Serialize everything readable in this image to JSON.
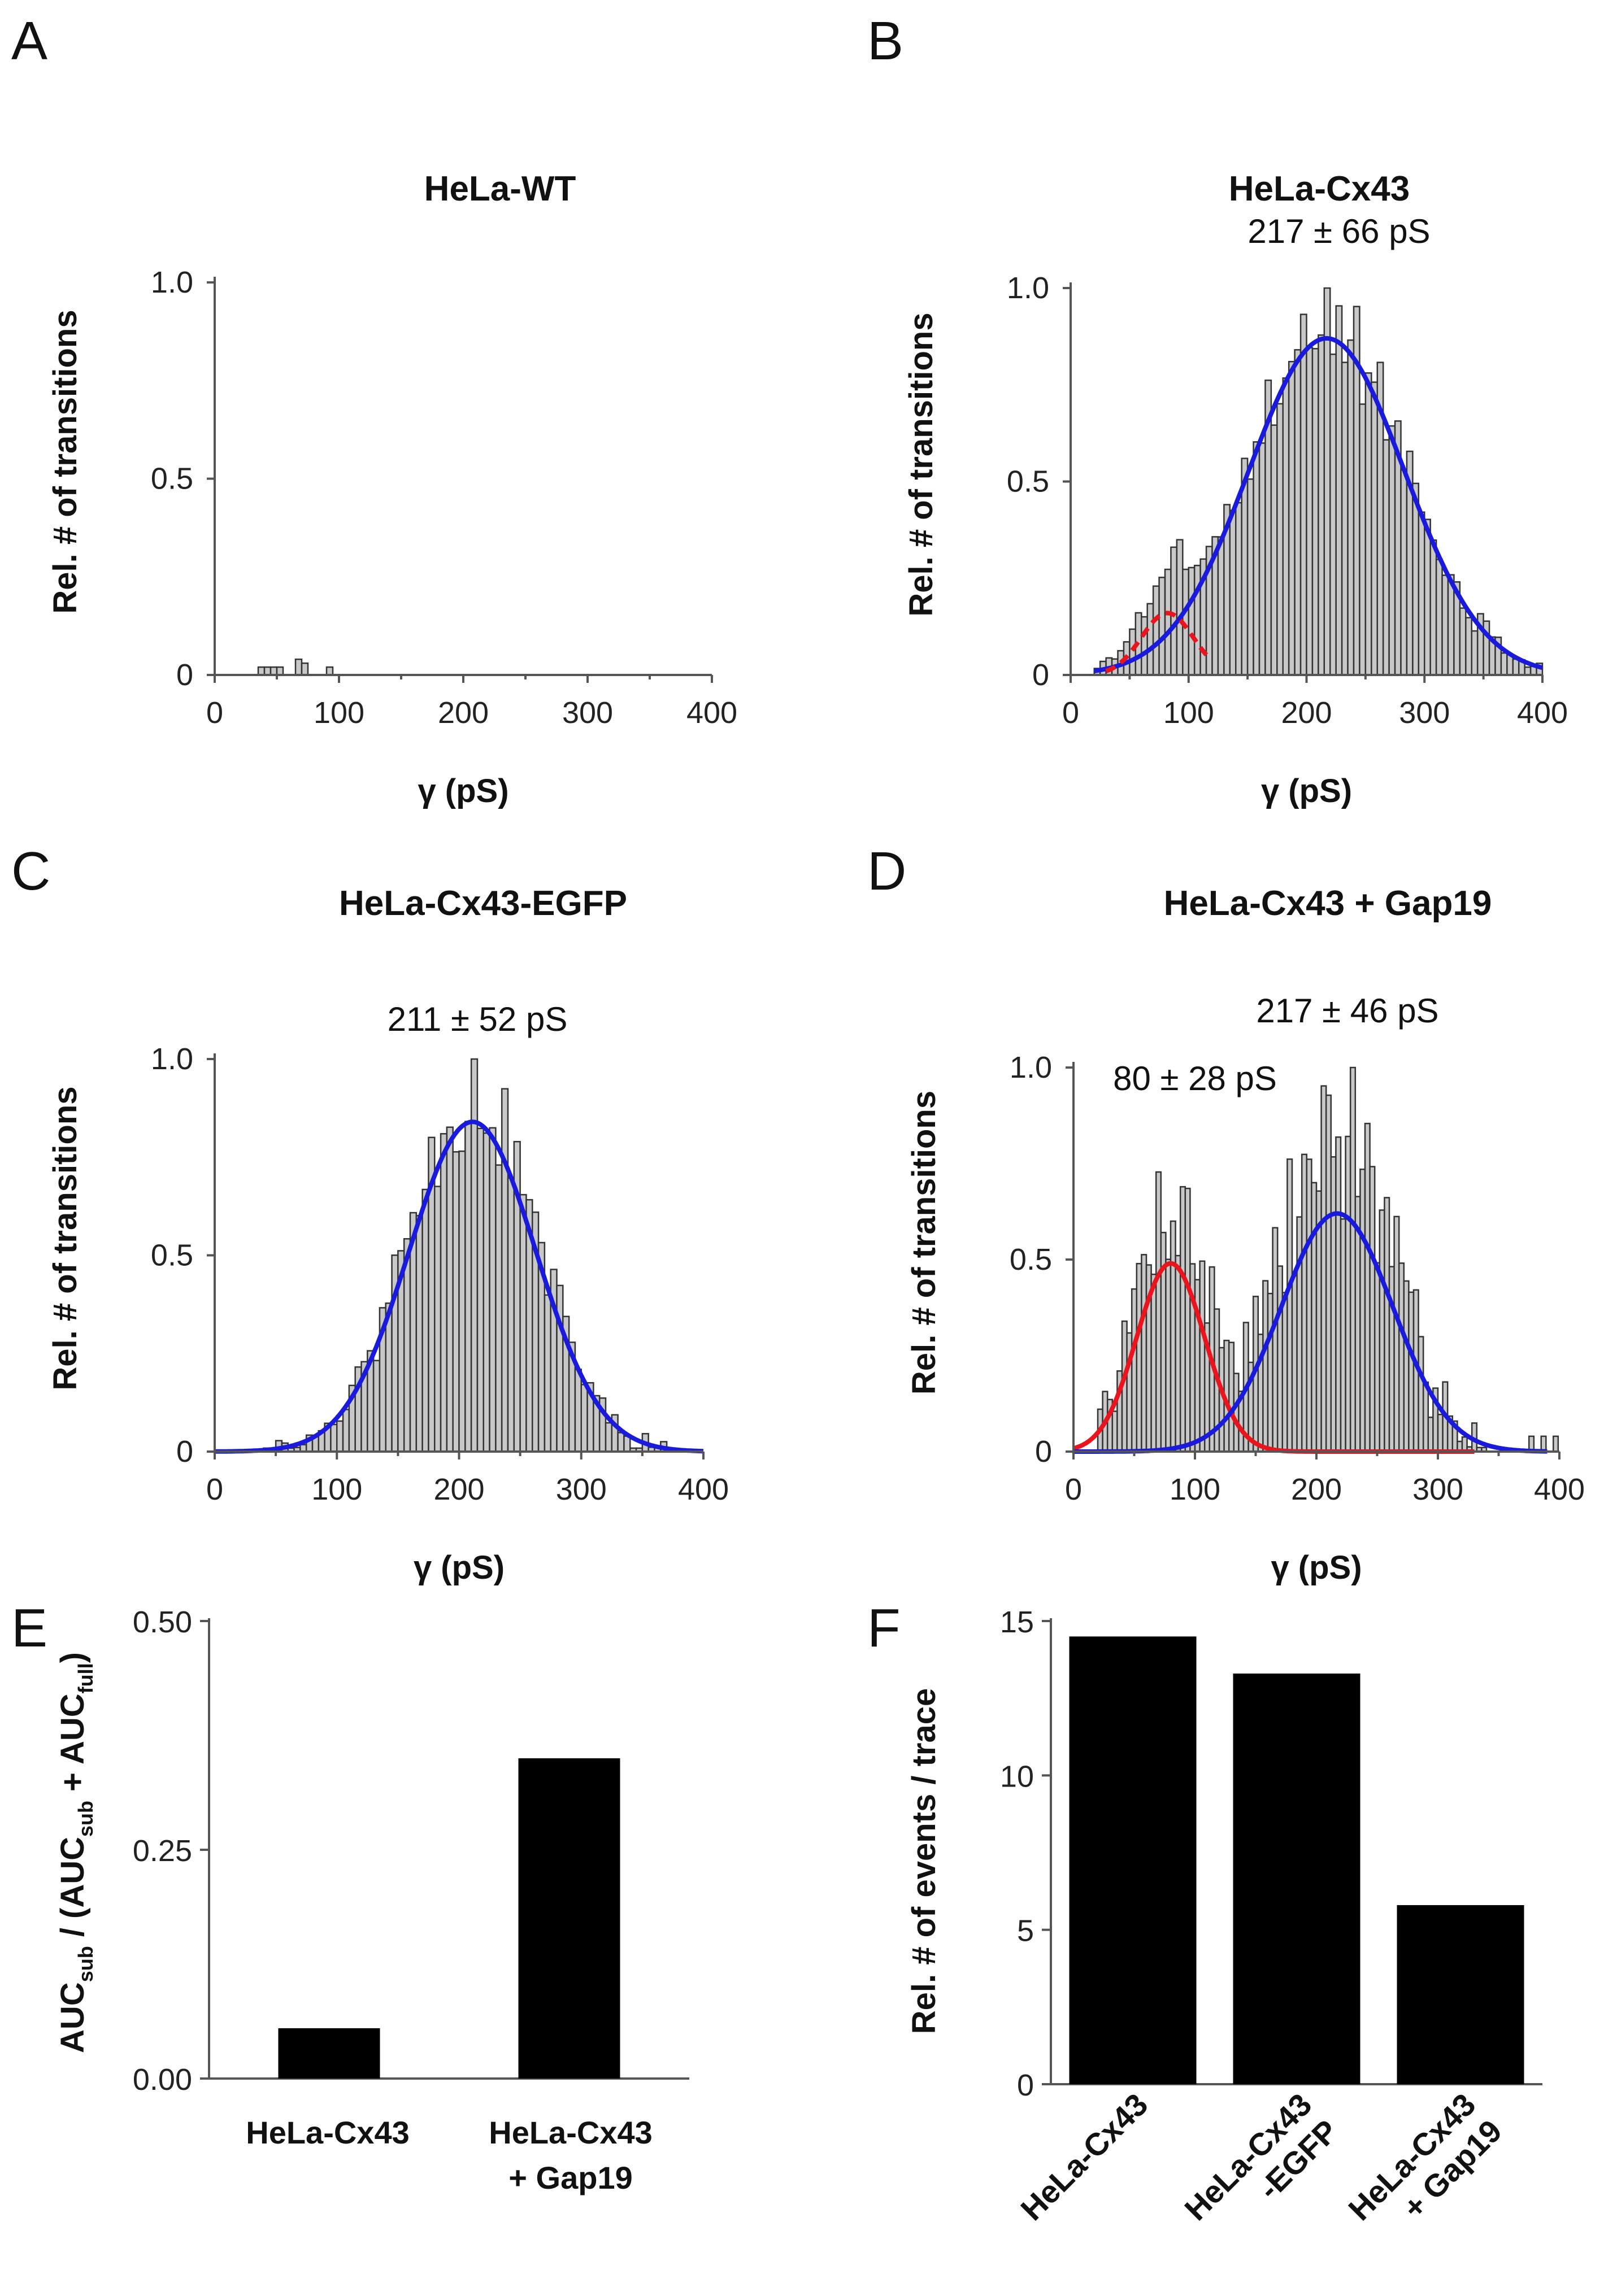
{
  "panels": {
    "A": {
      "letter": "A",
      "title": "HeLa-WT"
    },
    "B": {
      "letter": "B",
      "title": "HeLa-Cx43",
      "fit_label": "217 ± 66 pS"
    },
    "C": {
      "letter": "C",
      "title": "HeLa-Cx43-EGFP",
      "fit_label": "211 ± 52 pS"
    },
    "D": {
      "letter": "D",
      "title": "HeLa-Cx43 + Gap19",
      "fit_label_full": "217 ± 46 pS",
      "fit_label_sub": "80 ± 28 pS"
    },
    "E": {
      "letter": "E"
    },
    "F": {
      "letter": "F"
    }
  },
  "hist_axes": {
    "xlabel": "γ (pS)",
    "ylabel": "Rel. # of transitions",
    "xticks": [
      "0",
      "100",
      "200",
      "300",
      "400"
    ],
    "yticks": [
      "0",
      "0.5",
      "1.0"
    ]
  },
  "colors": {
    "full_fit": "#1a1adc",
    "sub_fit": "#e8141e",
    "hist_fill": "#c8c8c8",
    "bar": "#000000"
  },
  "chart_data": [
    {
      "id": "A",
      "type": "bar",
      "title": "HeLa-WT",
      "xlabel": "γ (pS)",
      "ylabel": "Rel. # of transitions",
      "xlim": [
        0,
        400
      ],
      "ylim": [
        0,
        1.0
      ],
      "bin_width": 5,
      "bins": [
        [
          35,
          0.02
        ],
        [
          40,
          0.02
        ],
        [
          45,
          0.02
        ],
        [
          50,
          0.02
        ],
        [
          65,
          0.04
        ],
        [
          70,
          0.03
        ],
        [
          90,
          0.02
        ]
      ]
    },
    {
      "id": "B",
      "type": "bar",
      "title": "HeLa-Cx43",
      "xlabel": "γ (pS)",
      "ylabel": "Rel. # of transitions",
      "xlim": [
        0,
        400
      ],
      "ylim": [
        0,
        1.0
      ],
      "bin_width": 5,
      "generator": {
        "x_start": 20,
        "x_end": 400,
        "noise_amp": 0.06,
        "seed": 3
      },
      "fits": [
        {
          "name": "full",
          "mean": 217,
          "sd": 66,
          "amp": 0.87,
          "style": "solid",
          "color": "#1a1adc",
          "range": [
            20,
            400
          ]
        },
        {
          "name": "sub",
          "mean": 82,
          "sd": 22,
          "amp": 0.16,
          "style": "dashed",
          "color": "#e8141e",
          "range": [
            30,
            115
          ]
        }
      ],
      "annotation": "217 ± 66 pS"
    },
    {
      "id": "C",
      "type": "bar",
      "title": "HeLa-Cx43-EGFP",
      "xlabel": "γ (pS)",
      "ylabel": "Rel. # of transitions",
      "xlim": [
        0,
        400
      ],
      "ylim": [
        0,
        1.0
      ],
      "bin_width": 5,
      "generator": {
        "x_start": 40,
        "x_end": 375,
        "noise_amp": 0.08,
        "seed": 11
      },
      "fits": [
        {
          "name": "full",
          "mean": 211,
          "sd": 52,
          "amp": 0.84,
          "style": "solid",
          "color": "#1a1adc",
          "range": [
            0,
            400
          ]
        }
      ],
      "annotation": "211 ± 52 pS"
    },
    {
      "id": "D",
      "type": "bar",
      "title": "HeLa-Cx43 + Gap19",
      "xlabel": "γ (pS)",
      "ylabel": "Rel. # of transitions",
      "xlim": [
        0,
        400
      ],
      "ylim": [
        0,
        1.0
      ],
      "bin_width": 4,
      "generator": {
        "x_start": 20,
        "x_end": 340,
        "noise_amp": 0.14,
        "seed": 7,
        "tail": [
          [
            375,
            0.03
          ],
          [
            385,
            0.03
          ],
          [
            395,
            0.03
          ]
        ]
      },
      "fits": [
        {
          "name": "sub",
          "mean": 80,
          "sd": 28,
          "amp": 0.49,
          "style": "solid",
          "color": "#e8141e",
          "range": [
            0,
            330
          ]
        },
        {
          "name": "full",
          "mean": 217,
          "sd": 46,
          "amp": 0.62,
          "style": "solid",
          "color": "#1a1adc",
          "range": [
            0,
            390
          ]
        }
      ],
      "annotations": [
        "217 ± 46 pS",
        "80 ± 28 pS"
      ]
    },
    {
      "id": "E",
      "type": "bar",
      "categories": [
        "HeLa-Cx43",
        "HeLa-Cx43\n+ Gap19"
      ],
      "values": [
        0.055,
        0.35
      ],
      "ylabel": "AUCsub / (AUCsub + AUCfull)",
      "ylim": [
        0,
        0.5
      ],
      "yticks": [
        "0.00",
        "0.25",
        "0.50"
      ]
    },
    {
      "id": "F",
      "type": "bar",
      "categories": [
        "HeLa-Cx43",
        "HeLa-Cx43\n-EGFP",
        "HeLa-Cx43\n+ Gap19"
      ],
      "values": [
        14.5,
        13.3,
        5.8
      ],
      "ylabel": "Rel. # of events / trace",
      "ylim": [
        0,
        15
      ],
      "yticks": [
        "0",
        "5",
        "10",
        "15"
      ]
    }
  ],
  "panel_E": {
    "ylabel_parts": [
      "AUC",
      "sub",
      " / (AUC",
      "sub",
      " + AUC",
      "full",
      ")"
    ],
    "categories": [
      "HeLa-Cx43",
      "HeLa-Cx43",
      "+ Gap19"
    ]
  },
  "panel_F": {
    "ylabel": "Rel. # of events / trace",
    "categories": [
      [
        "HeLa-Cx43"
      ],
      [
        "HeLa-Cx43",
        "-EGFP"
      ],
      [
        "HeLa-Cx43",
        "+ Gap19"
      ]
    ]
  }
}
